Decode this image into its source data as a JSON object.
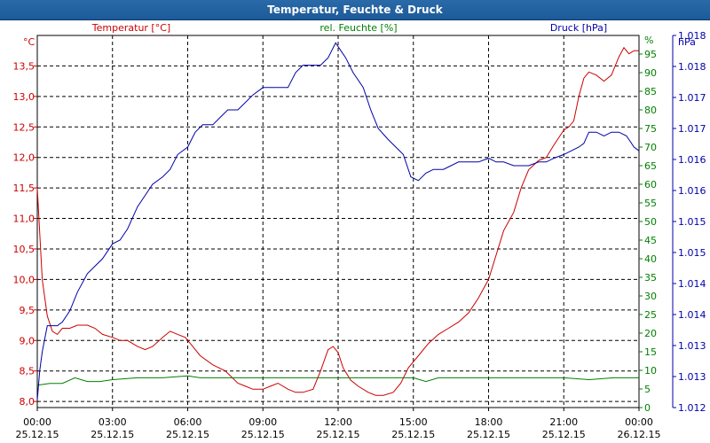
{
  "window": {
    "title": "Temperatur, Feuchte & Druck"
  },
  "chart_data": {
    "type": "line",
    "title": "Temperatur, Feuchte & Druck",
    "axes": {
      "left": {
        "label": "Temperatur [°C]",
        "unit": "°C",
        "ylim": [
          7.9,
          14.0
        ],
        "ticks": [
          "8,0",
          "8,5",
          "9,0",
          "9,5",
          "10,0",
          "10,5",
          "11,0",
          "11,5",
          "12,0",
          "12,5",
          "13,0",
          "13,5"
        ],
        "tick_values": [
          8.0,
          8.5,
          9.0,
          9.5,
          10.0,
          10.5,
          11.0,
          11.5,
          12.0,
          12.5,
          13.0,
          13.5
        ]
      },
      "mid": {
        "label": "rel. Feuchte [%]",
        "unit": "%",
        "ylim": [
          0,
          100
        ],
        "ticks": [
          "0",
          "5",
          "10",
          "15",
          "20",
          "25",
          "30",
          "35",
          "40",
          "45",
          "50",
          "55",
          "60",
          "65",
          "70",
          "75",
          "80",
          "85",
          "90",
          "95"
        ],
        "tick_values": [
          0,
          5,
          10,
          15,
          20,
          25,
          30,
          35,
          40,
          45,
          50,
          55,
          60,
          65,
          70,
          75,
          80,
          85,
          90,
          95
        ]
      },
      "right": {
        "label": "Druck [hPa]",
        "unit": "hPa",
        "ylim": [
          0,
          100
        ],
        "ticks": [
          "1.012",
          "1.013",
          "1.013",
          "1.014",
          "1.014",
          "1.015",
          "1.015",
          "1.016",
          "1.016",
          "1.017",
          "1.017",
          "1.018",
          "1.018"
        ],
        "tick_values": [
          0,
          8.33,
          16.67,
          25,
          33.33,
          41.67,
          50,
          58.33,
          66.67,
          75,
          83.33,
          91.67,
          100
        ]
      }
    },
    "x": {
      "xlim": [
        0,
        24
      ],
      "ticks": [
        0,
        3,
        6,
        9,
        12,
        15,
        18,
        21,
        24
      ],
      "time_labels": [
        "00:00",
        "03:00",
        "06:00",
        "09:00",
        "12:00",
        "15:00",
        "18:00",
        "21:00",
        "00:00"
      ],
      "date_labels": [
        "25.12.15",
        "25.12.15",
        "25.12.15",
        "25.12.15",
        "25.12.15",
        "25.12.15",
        "25.12.15",
        "25.12.15",
        "26.12.15"
      ]
    },
    "series": [
      {
        "name": "Temperatur [°C]",
        "axis": "left",
        "color": "#cc0000",
        "x": [
          0,
          0.2,
          0.4,
          0.6,
          0.8,
          1.0,
          1.3,
          1.6,
          2.0,
          2.3,
          2.6,
          3.0,
          3.3,
          3.6,
          4.0,
          4.3,
          4.6,
          5.0,
          5.3,
          5.6,
          5.9,
          6.2,
          6.5,
          7.0,
          7.5,
          8.0,
          8.3,
          8.6,
          9.0,
          9.3,
          9.6,
          10.0,
          10.3,
          10.6,
          11.0,
          11.3,
          11.6,
          11.8,
          12.0,
          12.2,
          12.5,
          12.8,
          13.2,
          13.5,
          13.8,
          14.2,
          14.5,
          14.8,
          15.2,
          15.6,
          16.0,
          16.4,
          16.8,
          17.2,
          17.6,
          18.0,
          18.3,
          18.6,
          19.0,
          19.3,
          19.6,
          20.0,
          20.3,
          20.6,
          21.0,
          21.2,
          21.4,
          21.6,
          21.8,
          22.0,
          22.3,
          22.6,
          22.9,
          23.2,
          23.4,
          23.6,
          23.8,
          24.0
        ],
        "values": [
          11.5,
          10.0,
          9.4,
          9.15,
          9.1,
          9.2,
          9.2,
          9.25,
          9.25,
          9.2,
          9.1,
          9.05,
          9.0,
          9.0,
          8.9,
          8.85,
          8.9,
          9.05,
          9.15,
          9.1,
          9.05,
          8.9,
          8.75,
          8.6,
          8.5,
          8.3,
          8.25,
          8.2,
          8.2,
          8.25,
          8.3,
          8.2,
          8.15,
          8.15,
          8.2,
          8.5,
          8.85,
          8.9,
          8.8,
          8.55,
          8.35,
          8.25,
          8.15,
          8.1,
          8.1,
          8.15,
          8.3,
          8.55,
          8.75,
          8.95,
          9.1,
          9.2,
          9.3,
          9.45,
          9.7,
          10.0,
          10.4,
          10.8,
          11.1,
          11.5,
          11.8,
          11.95,
          12.0,
          12.2,
          12.45,
          12.5,
          12.6,
          13.0,
          13.3,
          13.4,
          13.35,
          13.25,
          13.35,
          13.65,
          13.8,
          13.7,
          13.75,
          13.75
        ]
      },
      {
        "name": "rel. Feuchte [%]",
        "axis": "mid",
        "color": "#008000",
        "x": [
          0,
          0.5,
          1.0,
          1.5,
          2.0,
          2.5,
          3.0,
          4.0,
          5.0,
          6.0,
          6.5,
          7.0,
          8.0,
          9.0,
          10.0,
          11.0,
          12.0,
          13.0,
          14.0,
          15.0,
          15.5,
          16.0,
          17.0,
          18.0,
          19.0,
          20.0,
          21.0,
          22.0,
          23.0,
          24.0
        ],
        "values": [
          6,
          6.5,
          6.5,
          8,
          7,
          7,
          7.5,
          8,
          8,
          8.5,
          8,
          8,
          8,
          8,
          8,
          8,
          8,
          8,
          8,
          8,
          7,
          8,
          8,
          8,
          8,
          8,
          8,
          7.5,
          8,
          8
        ]
      },
      {
        "name": "Druck [hPa]",
        "axis": "right",
        "color": "#0000aa",
        "x": [
          0,
          0.1,
          0.2,
          0.4,
          0.6,
          0.8,
          1.0,
          1.3,
          1.6,
          2.0,
          2.3,
          2.6,
          3.0,
          3.3,
          3.6,
          4.0,
          4.3,
          4.6,
          5.0,
          5.3,
          5.6,
          6.0,
          6.3,
          6.6,
          7.0,
          7.3,
          7.6,
          8.0,
          8.3,
          8.6,
          9.0,
          9.3,
          9.6,
          10.0,
          10.3,
          10.6,
          11.0,
          11.3,
          11.6,
          11.9,
          12.1,
          12.3,
          12.6,
          13.0,
          13.3,
          13.6,
          14.0,
          14.3,
          14.6,
          14.9,
          15.2,
          15.5,
          15.8,
          16.2,
          16.5,
          16.8,
          17.2,
          17.6,
          18.0,
          18.3,
          18.6,
          19.0,
          19.3,
          19.6,
          20.0,
          20.3,
          20.6,
          21.0,
          21.3,
          21.6,
          21.8,
          22.0,
          22.3,
          22.6,
          22.9,
          23.2,
          23.5,
          23.8,
          24.0
        ],
        "values": [
          2,
          10,
          15,
          22,
          22,
          22,
          23,
          26,
          31,
          36,
          38,
          40,
          44,
          45,
          48,
          54,
          57,
          60,
          62,
          64,
          68,
          70,
          74,
          76,
          76,
          78,
          80,
          80,
          82,
          84,
          86,
          86,
          86,
          86,
          90,
          92,
          92,
          92,
          94,
          98,
          96,
          94,
          90,
          86,
          80,
          75,
          72,
          70,
          68,
          62,
          61,
          63,
          64,
          64,
          65,
          66,
          66,
          66,
          67,
          66,
          66,
          65,
          65,
          65,
          66,
          66,
          67,
          68,
          69,
          70,
          71,
          74,
          74,
          73,
          74,
          74,
          73,
          70,
          69
        ]
      }
    ]
  }
}
